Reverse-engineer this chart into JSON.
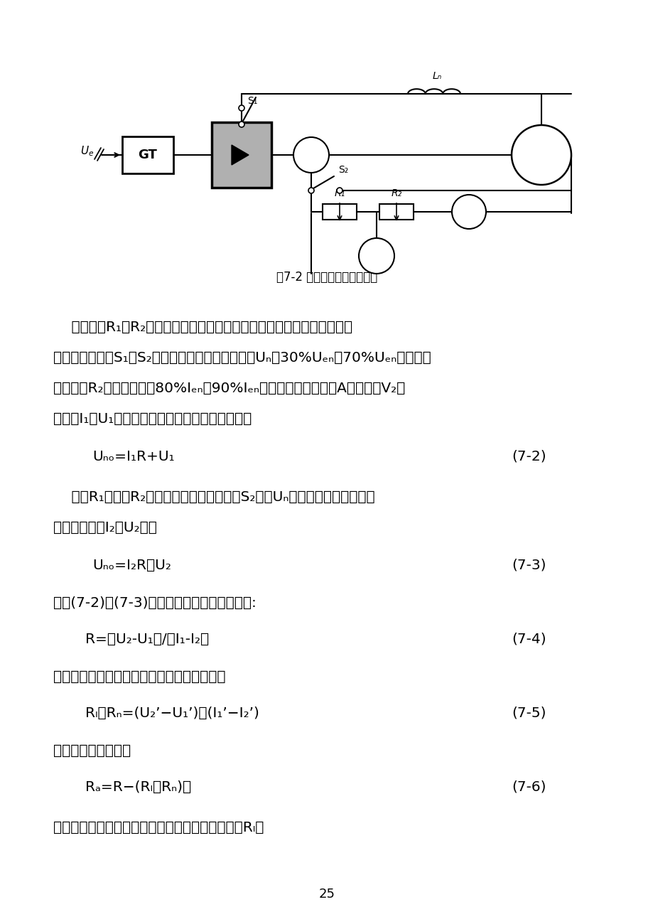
{
  "page_width": 9.2,
  "page_height": 13.0,
  "bg": "#f5f5f0",
  "fig_caption": "图7-2 伏安比较法实验线路图",
  "page_number": "25",
  "para1_lines": [
    "    将变阻器R₁、R₂接入被测系统的主电路，测试时电动机不加励磁，并使",
    "电机堵转。合上S₁、S₂，调节给定使输出直流电压Uₙ在30%Uₑₙ～70%Uₑₙ范围内，",
    "然后调整R₂使电枢电流在80%Iₑₙ～90%Iₑₙ范围内，读取电流表A和电压表V₂的",
    "数值为I₁、U₁，则此时整流装置的理想空载电压为"
  ],
  "formula72_left": "Uₙₒ=I₁R+U₁",
  "formula72_right": "(7-2)",
  "para2_lines": [
    "    调节R₁使之与R₂的电阻值相近，拉开开关S₂，在Uₙ的条件下读取电流表、",
    "电压表的数值I₂、U₂，则"
  ],
  "formula73_left": "Uₙₒ=I₂R＋U₂",
  "formula73_right": "(7-3)",
  "line_solve": "求解(7-2)、(7-3)两式，可得电枢回路总电阻:",
  "formula74_left": "R=（U₂-U₁）/（I₁-I₂）",
  "formula74_right": "(7-4)",
  "line_short": "如把电机电枢两端短接，重复上述实验，可得",
  "formula75_left": "Rₗ＋Rₙ=(U₂’−U₁’)／(I₁’−I₂’)",
  "formula75_right": "(7-5)",
  "line_armature": "则电机的电枢电阻为",
  "formula76_left": "Rₐ=R−(Rₗ＋Rₙ)。",
  "formula76_right": "(7-6)",
  "line_last": "同样，短接电抗器两端，也可测得电抗器直流电阻Rₗ。"
}
